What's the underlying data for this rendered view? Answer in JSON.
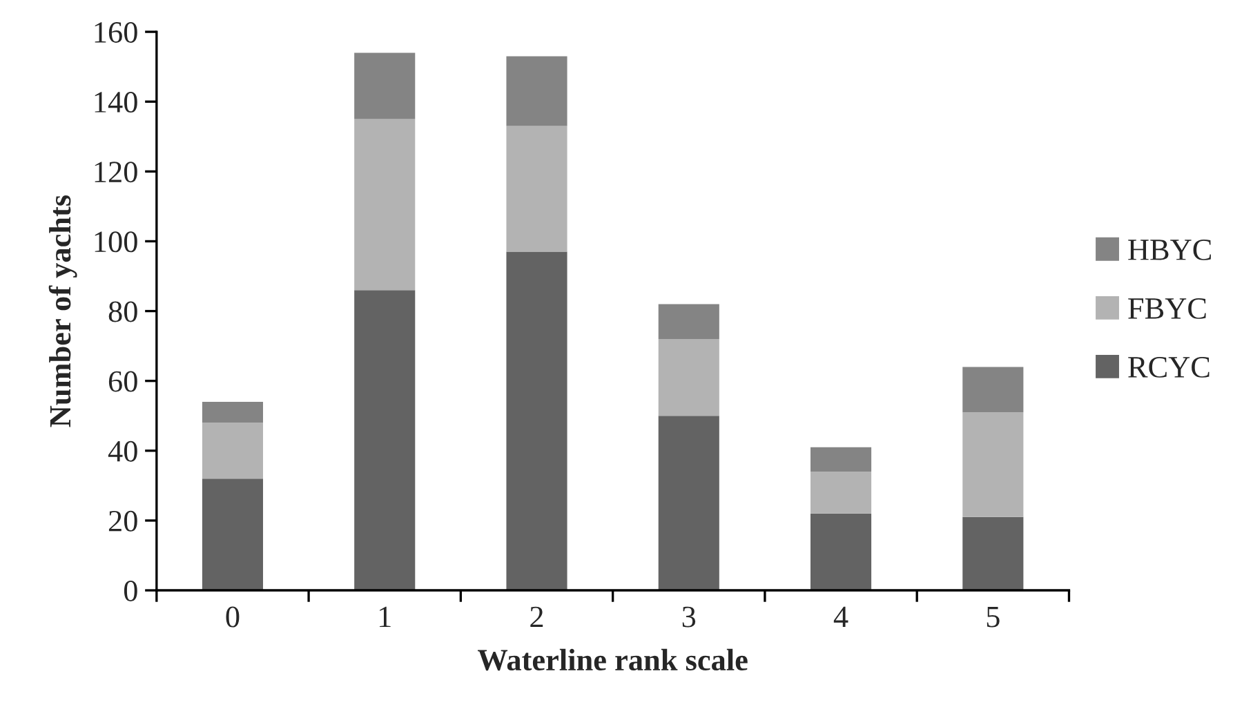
{
  "chart_data": {
    "type": "bar",
    "stacked": true,
    "xlabel": "Waterline rank scale",
    "ylabel": "Number of yachts",
    "categories": [
      "0",
      "1",
      "2",
      "3",
      "4",
      "5"
    ],
    "series": [
      {
        "name": "RCYC",
        "color": "#636363",
        "values": [
          32,
          86,
          97,
          50,
          22,
          21
        ]
      },
      {
        "name": "FBYC",
        "color": "#b3b3b3",
        "values": [
          16,
          49,
          36,
          22,
          12,
          30
        ]
      },
      {
        "name": "HBYC",
        "color": "#848484",
        "values": [
          6,
          19,
          20,
          10,
          7,
          13
        ]
      }
    ],
    "ylim": [
      0,
      160
    ],
    "yticks": [
      0,
      20,
      40,
      60,
      80,
      100,
      120,
      140,
      160
    ],
    "grid": false,
    "legend": "right"
  }
}
